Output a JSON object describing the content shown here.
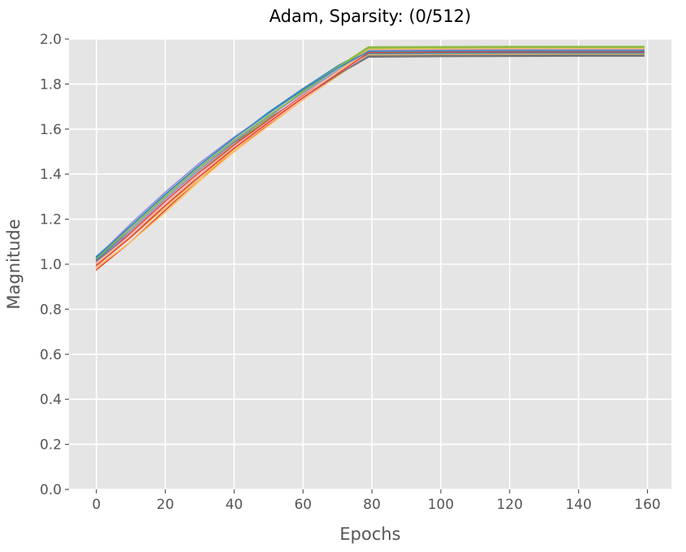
{
  "chart_data": {
    "type": "line",
    "title": "Adam, Sparsity: (0/512)",
    "xlabel": "Epochs",
    "ylabel": "Magnitude",
    "xlim": [
      -7.95,
      166.95
    ],
    "ylim": [
      0.0,
      2.0
    ],
    "xticks": [
      0,
      20,
      40,
      60,
      80,
      100,
      120,
      140,
      160
    ],
    "yticks": [
      0.0,
      0.2,
      0.4,
      0.6,
      0.8,
      1.0,
      1.2,
      1.4,
      1.6,
      1.8,
      2.0
    ],
    "xtick_labels": [
      "0",
      "20",
      "40",
      "60",
      "80",
      "100",
      "120",
      "140",
      "160"
    ],
    "ytick_labels": [
      "0.0",
      "0.2",
      "0.4",
      "0.6",
      "0.8",
      "1.0",
      "1.2",
      "1.4",
      "1.6",
      "1.8",
      "2.0"
    ],
    "grid": true,
    "background": "#E5E5E5",
    "x": [
      0,
      10,
      20,
      30,
      40,
      50,
      60,
      70,
      79,
      80,
      100,
      120,
      140,
      159
    ],
    "series": [
      {
        "color": "#E24A33",
        "values": [
          0.975,
          1.1,
          1.24,
          1.38,
          1.5,
          1.62,
          1.74,
          1.85,
          1.945,
          1.945,
          1.947,
          1.948,
          1.948,
          1.948
        ]
      },
      {
        "color": "#348ABD",
        "values": [
          1.035,
          1.17,
          1.31,
          1.44,
          1.56,
          1.675,
          1.78,
          1.88,
          1.955,
          1.955,
          1.957,
          1.958,
          1.958,
          1.958
        ]
      },
      {
        "color": "#988ED5",
        "values": [
          1.03,
          1.18,
          1.32,
          1.45,
          1.565,
          1.67,
          1.775,
          1.875,
          1.95,
          1.95,
          1.952,
          1.953,
          1.953,
          1.953
        ]
      },
      {
        "color": "#777777",
        "values": [
          1.02,
          1.15,
          1.29,
          1.42,
          1.54,
          1.645,
          1.745,
          1.84,
          1.92,
          1.92,
          1.922,
          1.923,
          1.924,
          1.924
        ]
      },
      {
        "color": "#FBC15E",
        "values": [
          0.985,
          1.1,
          1.23,
          1.37,
          1.5,
          1.615,
          1.73,
          1.835,
          1.93,
          1.93,
          1.932,
          1.933,
          1.934,
          1.934
        ]
      },
      {
        "color": "#8EBA42",
        "values": [
          1.0,
          1.13,
          1.26,
          1.4,
          1.53,
          1.65,
          1.77,
          1.875,
          1.965,
          1.965,
          1.966,
          1.967,
          1.967,
          1.967
        ]
      },
      {
        "color": "#FFB5B8",
        "values": [
          0.99,
          1.12,
          1.26,
          1.39,
          1.51,
          1.625,
          1.735,
          1.84,
          1.935,
          1.935,
          1.937,
          1.938,
          1.938,
          1.938
        ]
      },
      {
        "color": "#E24A33",
        "values": [
          1.01,
          1.14,
          1.28,
          1.41,
          1.53,
          1.64,
          1.75,
          1.85,
          1.94,
          1.94,
          1.942,
          1.943,
          1.943,
          1.943
        ]
      },
      {
        "color": "#348ABD",
        "values": [
          1.02,
          1.16,
          1.3,
          1.43,
          1.55,
          1.66,
          1.76,
          1.86,
          1.935,
          1.935,
          1.937,
          1.938,
          1.938,
          1.938
        ]
      },
      {
        "color": "#988ED5",
        "values": [
          1.01,
          1.15,
          1.29,
          1.42,
          1.545,
          1.655,
          1.76,
          1.86,
          1.95,
          1.95,
          1.952,
          1.953,
          1.953,
          1.953
        ]
      },
      {
        "color": "#777777",
        "values": [
          1.015,
          1.13,
          1.27,
          1.4,
          1.52,
          1.635,
          1.74,
          1.84,
          1.925,
          1.925,
          1.927,
          1.928,
          1.929,
          1.929
        ]
      },
      {
        "color": "#FBC15E",
        "values": [
          1.0,
          1.12,
          1.25,
          1.38,
          1.51,
          1.63,
          1.745,
          1.855,
          1.955,
          1.955,
          1.957,
          1.958,
          1.958,
          1.958
        ]
      },
      {
        "color": "#8EBA42",
        "values": [
          1.025,
          1.16,
          1.3,
          1.43,
          1.55,
          1.66,
          1.765,
          1.87,
          1.96,
          1.96,
          1.962,
          1.963,
          1.963,
          1.963
        ]
      },
      {
        "color": "#FFB5B8",
        "values": [
          1.005,
          1.13,
          1.27,
          1.4,
          1.52,
          1.635,
          1.745,
          1.85,
          1.945,
          1.945,
          1.947,
          1.948,
          1.948,
          1.948
        ]
      },
      {
        "color": "#E24A33",
        "values": [
          0.995,
          1.12,
          1.26,
          1.39,
          1.515,
          1.63,
          1.74,
          1.845,
          1.94,
          1.94,
          1.942,
          1.943,
          1.943,
          1.943
        ]
      },
      {
        "color": "#348ABD",
        "values": [
          1.03,
          1.17,
          1.31,
          1.44,
          1.56,
          1.67,
          1.775,
          1.87,
          1.945,
          1.945,
          1.947,
          1.948,
          1.948,
          1.948
        ]
      }
    ]
  }
}
